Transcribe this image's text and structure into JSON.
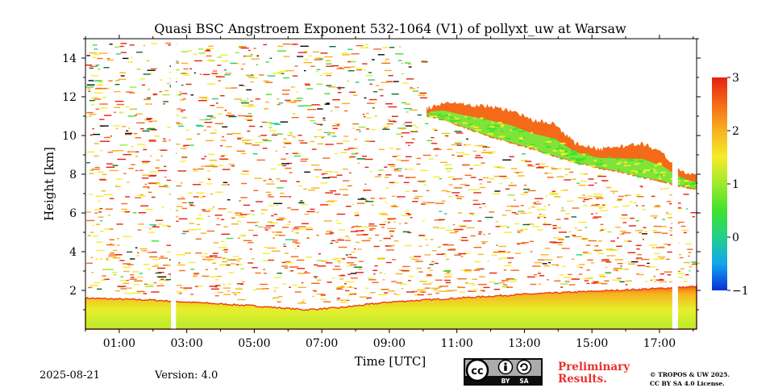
{
  "chart_data": {
    "type": "heatmap",
    "title": "Quasi BSC Angstroem Exponent 532-1064 (V1) of pollyxt_uw at Warsaw",
    "xlabel": "Time [UTC]",
    "ylabel": "Height [km]",
    "xlim": [
      0,
      18.1
    ],
    "ylim": [
      0,
      15
    ],
    "x_ticks": [
      {
        "value": 1,
        "label": "01:00"
      },
      {
        "value": 3,
        "label": "03:00"
      },
      {
        "value": 5,
        "label": "05:00"
      },
      {
        "value": 7,
        "label": "07:00"
      },
      {
        "value": 9,
        "label": "09:00"
      },
      {
        "value": 11,
        "label": "11:00"
      },
      {
        "value": 13,
        "label": "13:00"
      },
      {
        "value": 15,
        "label": "15:00"
      },
      {
        "value": 17,
        "label": "17:00"
      }
    ],
    "y_ticks": [
      {
        "value": 2,
        "label": "2"
      },
      {
        "value": 4,
        "label": "4"
      },
      {
        "value": 6,
        "label": "6"
      },
      {
        "value": 8,
        "label": "8"
      },
      {
        "value": 10,
        "label": "10"
      },
      {
        "value": 12,
        "label": "12"
      },
      {
        "value": 14,
        "label": "14"
      }
    ],
    "colorbar": {
      "range": [
        -1,
        3
      ],
      "ticks": [
        {
          "value": 3,
          "label": "3"
        },
        {
          "value": 2,
          "label": "2"
        },
        {
          "value": 1,
          "label": "1"
        },
        {
          "value": 0,
          "label": "0"
        },
        {
          "value": -1,
          "label": "−1"
        }
      ],
      "colors": [
        "#0a2fd8",
        "#11a6ee",
        "#23d08a",
        "#3ee22e",
        "#9fe92c",
        "#f4ec2b",
        "#f7b21f",
        "#f46a18",
        "#e62110"
      ]
    },
    "boundary_layer_top_km": [
      {
        "t": 0.0,
        "h": 1.6
      },
      {
        "t": 2.0,
        "h": 1.5
      },
      {
        "t": 4.0,
        "h": 1.3
      },
      {
        "t": 5.0,
        "h": 1.2
      },
      {
        "t": 6.5,
        "h": 1.0
      },
      {
        "t": 7.5,
        "h": 1.1
      },
      {
        "t": 9.0,
        "h": 1.4
      },
      {
        "t": 11.0,
        "h": 1.6
      },
      {
        "t": 13.0,
        "h": 1.8
      },
      {
        "t": 15.0,
        "h": 1.95
      },
      {
        "t": 17.0,
        "h": 2.1
      },
      {
        "t": 18.1,
        "h": 2.2
      }
    ],
    "cirrus_layer_km": [
      {
        "t": 10.1,
        "top": 11.4,
        "bottom": 11.0
      },
      {
        "t": 10.6,
        "top": 11.7,
        "bottom": 10.8
      },
      {
        "t": 11.2,
        "top": 11.6,
        "bottom": 10.4
      },
      {
        "t": 12.0,
        "top": 11.5,
        "bottom": 9.9
      },
      {
        "t": 12.6,
        "top": 11.3,
        "bottom": 9.6
      },
      {
        "t": 13.2,
        "top": 10.8,
        "bottom": 9.3
      },
      {
        "t": 13.9,
        "top": 10.6,
        "bottom": 8.9
      },
      {
        "t": 14.5,
        "top": 9.6,
        "bottom": 8.6
      },
      {
        "t": 15.2,
        "top": 9.3,
        "bottom": 8.3
      },
      {
        "t": 15.8,
        "top": 9.4,
        "bottom": 8.1
      },
      {
        "t": 16.5,
        "top": 9.6,
        "bottom": 7.8
      },
      {
        "t": 17.1,
        "top": 9.1,
        "bottom": 7.6
      },
      {
        "t": 17.5,
        "top": 8.4,
        "bottom": 7.4
      },
      {
        "t": 17.75,
        "top": 8.1,
        "bottom": 7.3
      },
      {
        "t": 18.1,
        "top": 7.9,
        "bottom": 7.2
      }
    ],
    "data_gaps_utc": [
      [
        2.53,
        2.68
      ],
      [
        17.38,
        17.55
      ]
    ]
  },
  "footer": {
    "date": "2025-08-21",
    "version": "Version: 4.0",
    "license_badge": [
      "BY",
      "SA"
    ],
    "preliminary": [
      "Preliminary",
      "Results."
    ],
    "copyright": [
      "© TROPOS & UW 2025.",
      "CC BY SA 4.0 License."
    ]
  }
}
